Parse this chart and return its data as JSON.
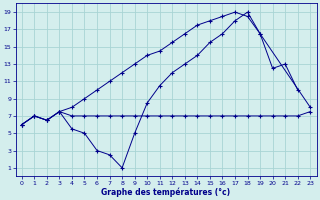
{
  "xlabel": "Graphe des températures (°c)",
  "bg_color": "#d4eeed",
  "grid_color": "#a8d4d4",
  "line_color": "#00008b",
  "xlim": [
    -0.5,
    23.5
  ],
  "ylim": [
    0,
    20
  ],
  "xticks": [
    0,
    1,
    2,
    3,
    4,
    5,
    6,
    7,
    8,
    9,
    10,
    11,
    12,
    13,
    14,
    15,
    16,
    17,
    18,
    19,
    20,
    21,
    22,
    23
  ],
  "yticks": [
    1,
    3,
    5,
    7,
    9,
    11,
    13,
    15,
    17,
    19
  ],
  "series": [
    {
      "x": [
        0,
        1,
        2,
        3,
        4,
        5,
        6,
        7,
        8,
        9,
        10,
        11,
        12,
        13,
        14,
        15,
        16,
        17,
        18,
        19,
        20,
        21,
        22,
        23
      ],
      "y": [
        6,
        7,
        6.5,
        7.5,
        7,
        7,
        7,
        7,
        7,
        7,
        7,
        7,
        7,
        7,
        7,
        7,
        7,
        7,
        7,
        7,
        7,
        7,
        7,
        7.5
      ]
    },
    {
      "x": [
        0,
        1,
        2,
        3,
        4,
        5,
        6,
        7,
        8,
        9,
        10,
        11,
        12,
        13,
        14,
        15,
        16,
        17,
        18,
        19,
        20,
        21,
        22,
        23
      ],
      "y": [
        6,
        7,
        6.5,
        7.5,
        8,
        9,
        10,
        11,
        12,
        13,
        14,
        14.5,
        15.5,
        16.5,
        17.5,
        18,
        18.5,
        19,
        18.5,
        16.5,
        12.5,
        13,
        10,
        null
      ]
    },
    {
      "x": [
        0,
        1,
        2,
        3,
        4,
        5,
        6,
        7,
        8,
        9,
        10,
        11,
        12,
        13,
        14,
        15,
        16,
        17,
        18,
        19,
        20,
        21,
        22,
        23
      ],
      "y": [
        6,
        7,
        6.5,
        7.5,
        5.5,
        5,
        3,
        2.5,
        1,
        5,
        8.5,
        10.5,
        12,
        13,
        14,
        15.5,
        16.5,
        18,
        19,
        16.5,
        null,
        null,
        null,
        8
      ]
    }
  ]
}
